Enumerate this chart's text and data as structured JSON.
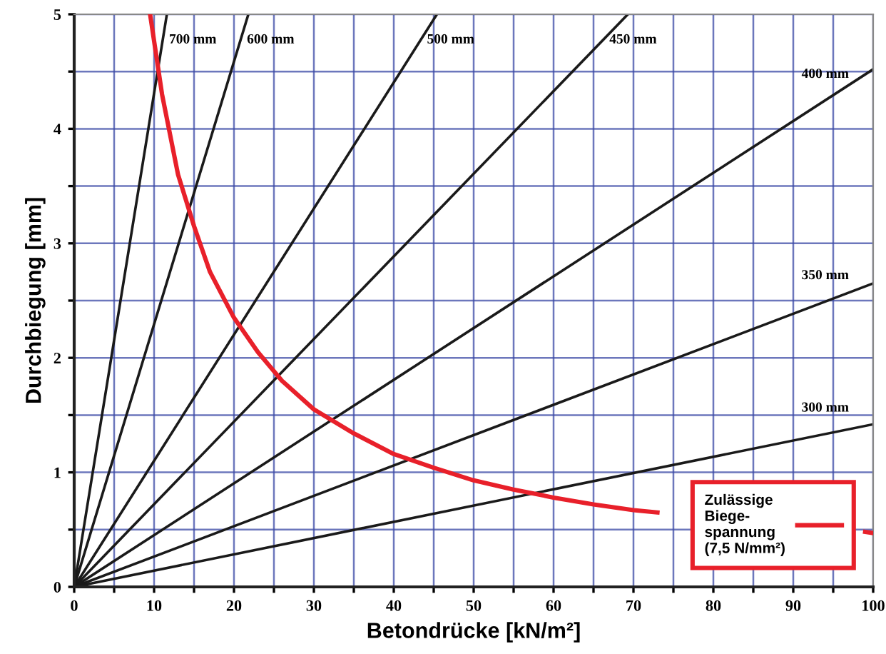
{
  "chart_data": {
    "type": "line",
    "xlabel": "Betondrücke [kN/m²]",
    "ylabel": "Durchbiegung [mm]",
    "xlim": [
      0,
      100
    ],
    "ylim": [
      0,
      5
    ],
    "xticks": [
      0,
      {
        "value": 5,
        "label": null
      },
      10,
      {
        "value": 15,
        "label": null
      },
      20,
      {
        "value": 25,
        "label": null
      },
      30,
      {
        "value": 35,
        "label": null
      },
      40,
      {
        "value": 45,
        "label": null
      },
      50,
      {
        "value": 55,
        "label": null
      },
      60,
      {
        "value": 65,
        "label": null
      },
      70,
      {
        "value": 75,
        "label": null
      },
      80,
      {
        "value": 85,
        "label": null
      },
      90,
      {
        "value": 95,
        "label": null
      },
      100
    ],
    "yticks": [
      0,
      {
        "value": 0.5,
        "label": null
      },
      1,
      {
        "value": 1.5,
        "label": null
      },
      2,
      {
        "value": 2.5,
        "label": null
      },
      3,
      {
        "value": 3.5,
        "label": null
      },
      4,
      {
        "value": 4.5,
        "label": null
      },
      5
    ],
    "grid": true,
    "legend": "bottom right",
    "marker": "none",
    "line_style": "solid",
    "series": [
      {
        "color": "#1a1a1a",
        "x": [
          0,
          11.6
        ],
        "values": [
          0,
          5
        ]
      },
      {
        "color": "#1a1a1a",
        "x": [
          0,
          21.8
        ],
        "values": [
          0,
          5
        ]
      },
      {
        "color": "#1a1a1a",
        "x": [
          0,
          45.4
        ],
        "values": [
          0,
          5
        ]
      },
      {
        "color": "#1a1a1a",
        "x": [
          0,
          69.3
        ],
        "values": [
          0,
          5
        ]
      },
      {
        "color": "#1a1a1a",
        "x": [
          0,
          100
        ],
        "values": [
          0,
          4.52
        ]
      },
      {
        "color": "#1a1a1a",
        "x": [
          0,
          100
        ],
        "values": [
          0,
          2.65
        ]
      },
      {
        "color": "#1a1a1a",
        "x": [
          0,
          100
        ],
        "values": [
          0,
          1.42
        ]
      },
      {
        "name": "Zulässige\nBiege-\nspannung\n(7,5 N/mm²)",
        "color": "#e8202a",
        "x": [
          9.5,
          11,
          13,
          15,
          17,
          20,
          23,
          26,
          30,
          35,
          40,
          45,
          50,
          55,
          60,
          65,
          70,
          73,
          80,
          90,
          99,
          100
        ],
        "values": [
          5,
          4.3,
          3.6,
          3.15,
          2.75,
          2.35,
          2.05,
          1.8,
          1.55,
          1.34,
          1.16,
          1.04,
          0.93,
          0.85,
          0.78,
          0.72,
          0.67,
          0.65,
          null,
          null,
          0.48,
          0.47
        ]
      }
    ],
    "annotations": [
      "700 mm",
      "600 mm",
      "500 mm",
      "450 mm",
      "400 mm",
      "350 mm",
      "300 mm"
    ]
  }
}
